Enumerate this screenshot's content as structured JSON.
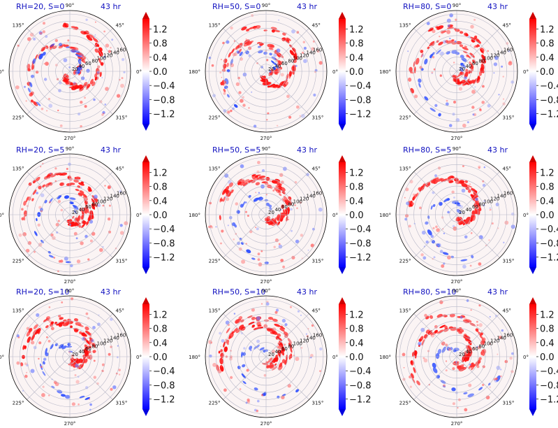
{
  "chart_data": [
    {
      "type": "heatmap",
      "title_left": "RH=20, S=0",
      "title_right": "43 hr",
      "theta_ticks": [
        "0°",
        "45°",
        "90°",
        "135°",
        "180°",
        "225°",
        "270°",
        "315°"
      ],
      "r_ticks": [
        "20",
        "40",
        "60",
        "80",
        "100",
        "120",
        "140",
        "160"
      ],
      "colorbar_ticks": [
        "1.2",
        "0.8",
        "0.4",
        "0.0",
        "−0.4",
        "−0.8",
        "−1.2"
      ]
    },
    {
      "type": "heatmap",
      "title_left": "RH=50, S=0",
      "title_right": "43 hr",
      "theta_ticks": [
        "0°",
        "45°",
        "90°",
        "135°",
        "180°",
        "225°",
        "270°",
        "315°"
      ],
      "r_ticks": [
        "20",
        "40",
        "60",
        "80",
        "100",
        "120",
        "140",
        "160"
      ],
      "colorbar_ticks": [
        "1.2",
        "0.8",
        "0.4",
        "0.0",
        "−0.4",
        "−0.8",
        "−1.2"
      ]
    },
    {
      "type": "heatmap",
      "title_left": "RH=80, S=0",
      "title_right": "43 hr",
      "theta_ticks": [
        "0°",
        "45°",
        "90°",
        "135°",
        "180°",
        "225°",
        "270°",
        "315°"
      ],
      "r_ticks": [
        "20",
        "40",
        "60",
        "80",
        "100",
        "120",
        "140",
        "160"
      ],
      "colorbar_ticks": [
        "1.2",
        "0.8",
        "0.4",
        "0.0",
        "−0.4",
        "−0.8",
        "−1.2"
      ]
    },
    {
      "type": "heatmap",
      "title_left": "RH=20, S=5",
      "title_right": "43 hr",
      "theta_ticks": [
        "0°",
        "45°",
        "90°",
        "135°",
        "180°",
        "225°",
        "270°",
        "315°"
      ],
      "r_ticks": [
        "20",
        "40",
        "60",
        "80",
        "100",
        "120",
        "140",
        "160"
      ],
      "colorbar_ticks": [
        "1.2",
        "0.8",
        "0.4",
        "0.0",
        "−0.4",
        "−0.8",
        "−1.2"
      ]
    },
    {
      "type": "heatmap",
      "title_left": "RH=50, S=5",
      "title_right": "43 hr",
      "theta_ticks": [
        "0°",
        "45°",
        "90°",
        "135°",
        "180°",
        "225°",
        "270°",
        "315°"
      ],
      "r_ticks": [
        "20",
        "40",
        "60",
        "80",
        "100",
        "120",
        "140",
        "160"
      ],
      "colorbar_ticks": [
        "1.2",
        "0.8",
        "0.4",
        "0.0",
        "−0.4",
        "−0.8",
        "−1.2"
      ]
    },
    {
      "type": "heatmap",
      "title_left": "RH=80, S=5",
      "title_right": "43 hr",
      "theta_ticks": [
        "0°",
        "45°",
        "90°",
        "135°",
        "180°",
        "225°",
        "270°",
        "315°"
      ],
      "r_ticks": [
        "20",
        "40",
        "60",
        "80",
        "100",
        "120",
        "140",
        "160"
      ],
      "colorbar_ticks": [
        "1.2",
        "0.8",
        "0.4",
        "0.0",
        "−0.4",
        "−0.8",
        "−1.2"
      ]
    },
    {
      "type": "heatmap",
      "title_left": "RH=20, S=10",
      "title_right": "43 hr",
      "theta_ticks": [
        "0°",
        "45°",
        "90°",
        "135°",
        "180°",
        "225°",
        "270°",
        "315°"
      ],
      "r_ticks": [
        "20",
        "40",
        "60",
        "80",
        "100",
        "120",
        "140",
        "160"
      ],
      "colorbar_ticks": [
        "1.2",
        "0.8",
        "0.4",
        "0.0",
        "−0.4",
        "−0.8",
        "−1.2"
      ]
    },
    {
      "type": "heatmap",
      "title_left": "RH=50, S=10",
      "title_right": "43 hr",
      "theta_ticks": [
        "0°",
        "45°",
        "90°",
        "135°",
        "180°",
        "225°",
        "270°",
        "315°"
      ],
      "r_ticks": [
        "20",
        "40",
        "60",
        "80",
        "100",
        "120",
        "140",
        "160"
      ],
      "colorbar_ticks": [
        "1.2",
        "0.8",
        "0.4",
        "0.0",
        "−0.4",
        "−0.8",
        "−1.2"
      ]
    },
    {
      "type": "heatmap",
      "title_left": "RH=80, S=10",
      "title_right": "43 hr",
      "theta_ticks": [
        "0°",
        "45°",
        "90°",
        "135°",
        "180°",
        "225°",
        "270°",
        "315°"
      ],
      "r_ticks": [
        "20",
        "40",
        "60",
        "80",
        "100",
        "120",
        "140",
        "160"
      ],
      "colorbar_ticks": [
        "1.2",
        "0.8",
        "0.4",
        "0.0",
        "−0.4",
        "−0.8",
        "−1.2"
      ]
    }
  ],
  "colors": {
    "title": "#1010c0",
    "positive": "#ff0000",
    "negative": "#0000ff",
    "zero": "#ffffff"
  }
}
